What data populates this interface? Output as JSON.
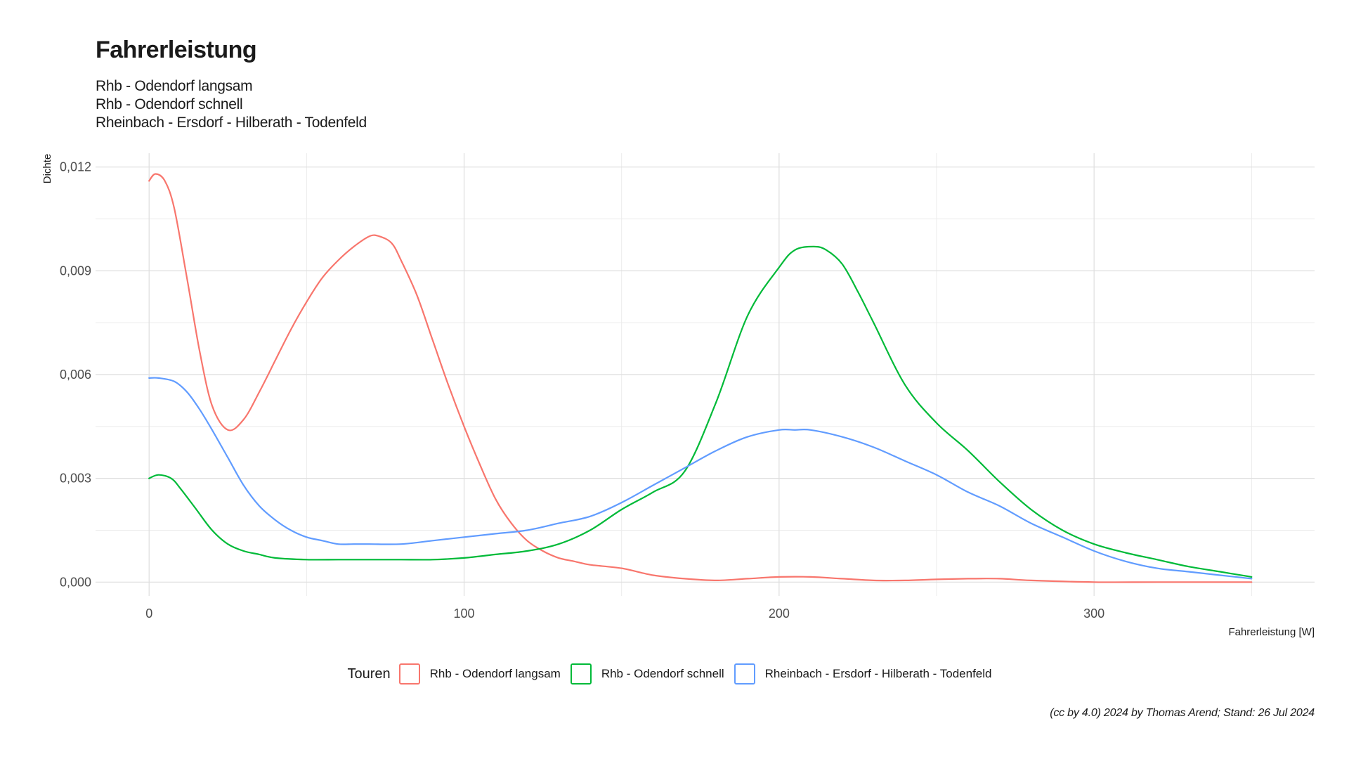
{
  "chart_data": {
    "type": "line",
    "title": "Fahrerleistung",
    "subtitle_lines": [
      "Rhb - Odendorf langsam",
      "Rhb - Odendorf schnell",
      "Rheinbach - Ersdorf - Hilberath - Todenfeld"
    ],
    "xlabel": "Fahrerleistung [W]",
    "ylabel": "Dichte",
    "xlim": [
      -17,
      370
    ],
    "ylim": [
      -0.0004,
      0.0124
    ],
    "x_ticks": [
      0,
      100,
      200,
      300
    ],
    "x_tick_labels": [
      "0",
      "100",
      "200",
      "300"
    ],
    "y_ticks": [
      0,
      0.003,
      0.006,
      0.009,
      0.012
    ],
    "y_tick_labels": [
      "0,000",
      "0,003",
      "0,006",
      "0,009",
      "0,012"
    ],
    "grid": true,
    "legend_title": "Touren",
    "legend_position": "bottom",
    "caption": "(cc by 4.0) 2024 by Thomas Arend; Stand: 26 Jul 2024",
    "series": [
      {
        "name": "Rhb - Odendorf langsam",
        "color": "#F8766D",
        "x": [
          0,
          2,
          5,
          8,
          12,
          16,
          20,
          25,
          30,
          35,
          40,
          45,
          50,
          55,
          60,
          65,
          70,
          73,
          77,
          80,
          85,
          90,
          95,
          100,
          105,
          110,
          115,
          120,
          125,
          130,
          135,
          140,
          150,
          160,
          170,
          180,
          190,
          200,
          210,
          220,
          230,
          240,
          250,
          260,
          270,
          280,
          300,
          320,
          350
        ],
        "y": [
          0.0116,
          0.0118,
          0.0116,
          0.0108,
          0.0088,
          0.0067,
          0.0051,
          0.0044,
          0.0047,
          0.0055,
          0.0064,
          0.0073,
          0.0081,
          0.0088,
          0.0093,
          0.0097,
          0.01,
          0.01,
          0.0098,
          0.0093,
          0.0083,
          0.007,
          0.0057,
          0.0045,
          0.0034,
          0.0024,
          0.0017,
          0.0012,
          0.0009,
          0.0007,
          0.0006,
          0.0005,
          0.0004,
          0.0002,
          0.0001,
          5e-05,
          0.0001,
          0.00015,
          0.00015,
          0.0001,
          5e-05,
          5e-05,
          8e-05,
          0.0001,
          0.0001,
          5e-05,
          0.0,
          0.0,
          0.0
        ]
      },
      {
        "name": "Rhb - Odendorf schnell",
        "color": "#00BA38",
        "x": [
          0,
          3,
          7,
          10,
          15,
          20,
          25,
          30,
          35,
          40,
          50,
          60,
          70,
          80,
          90,
          100,
          110,
          120,
          130,
          140,
          150,
          160,
          170,
          180,
          190,
          200,
          205,
          211,
          215,
          220,
          225,
          230,
          240,
          250,
          260,
          270,
          280,
          290,
          300,
          310,
          320,
          330,
          340,
          350
        ],
        "y": [
          0.003,
          0.0031,
          0.003,
          0.0027,
          0.0021,
          0.0015,
          0.0011,
          0.0009,
          0.0008,
          0.0007,
          0.00065,
          0.00065,
          0.00065,
          0.00065,
          0.00065,
          0.0007,
          0.0008,
          0.0009,
          0.0011,
          0.0015,
          0.0021,
          0.0026,
          0.0032,
          0.0052,
          0.0077,
          0.0091,
          0.0096,
          0.0097,
          0.0096,
          0.0092,
          0.0084,
          0.0075,
          0.0057,
          0.0046,
          0.0038,
          0.0029,
          0.0021,
          0.0015,
          0.0011,
          0.00085,
          0.00065,
          0.00045,
          0.0003,
          0.00015
        ]
      },
      {
        "name": "Rheinbach - Ersdorf - Hilberath - Todenfeld",
        "color": "#619CFF",
        "x": [
          0,
          3,
          8,
          12,
          16,
          20,
          25,
          30,
          35,
          40,
          45,
          50,
          55,
          60,
          65,
          70,
          80,
          90,
          100,
          110,
          120,
          130,
          140,
          150,
          160,
          170,
          180,
          190,
          200,
          205,
          210,
          220,
          230,
          240,
          250,
          260,
          270,
          280,
          290,
          300,
          310,
          320,
          330,
          340,
          350
        ],
        "y": [
          0.0059,
          0.0059,
          0.0058,
          0.0055,
          0.005,
          0.0044,
          0.0036,
          0.0028,
          0.0022,
          0.0018,
          0.0015,
          0.0013,
          0.0012,
          0.0011,
          0.0011,
          0.0011,
          0.0011,
          0.0012,
          0.0013,
          0.0014,
          0.0015,
          0.0017,
          0.0019,
          0.0023,
          0.0028,
          0.0033,
          0.0038,
          0.0042,
          0.0044,
          0.0044,
          0.0044,
          0.0042,
          0.0039,
          0.0035,
          0.0031,
          0.0026,
          0.0022,
          0.0017,
          0.0013,
          0.0009,
          0.0006,
          0.0004,
          0.0003,
          0.0002,
          0.0001
        ]
      }
    ]
  }
}
